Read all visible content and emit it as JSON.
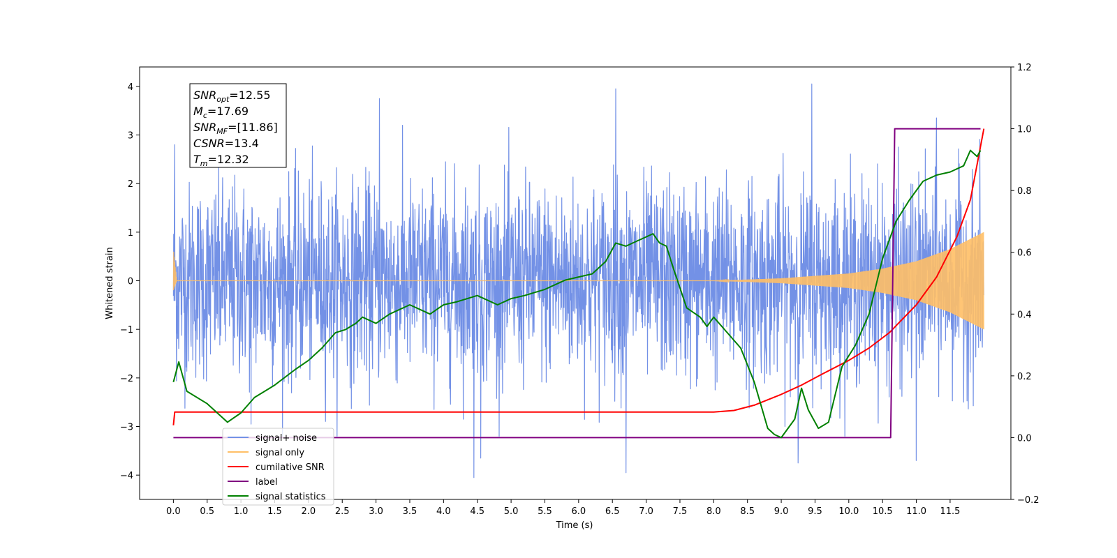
{
  "chart_data": {
    "type": "line",
    "xlabel": "Time (s)",
    "ylabel_left": "Whitened strain",
    "ylabel_right": "",
    "xlim": [
      -0.5,
      12.4
    ],
    "ylim_left": [
      -4.5,
      4.4
    ],
    "ylim_right": [
      -0.2,
      1.2
    ],
    "grid": false,
    "legend_placement": "lower-left",
    "x_ticks": [
      0.0,
      0.5,
      1.0,
      1.5,
      2.0,
      2.5,
      3.0,
      3.5,
      4.0,
      4.5,
      5.0,
      5.5,
      6.0,
      6.5,
      7.0,
      7.5,
      8.0,
      8.5,
      9.0,
      9.5,
      10.0,
      10.5,
      11.0,
      11.5
    ],
    "x_tick_labels": [
      "0.0",
      "0.5",
      "1.0",
      "1.5",
      "2.0",
      "2.5",
      "3.0",
      "3.5",
      "4.0",
      "4.5",
      "5.0",
      "5.5",
      "6.0",
      "6.5",
      "7.0",
      "7.5",
      "8.0",
      "8.5",
      "9.0",
      "9.5",
      "10.0",
      "10.5",
      "11.0",
      "11.5"
    ],
    "y_ticks_left": [
      -4,
      -3,
      -2,
      -1,
      0,
      1,
      2,
      3,
      4
    ],
    "y_tick_labels_left": [
      "−4",
      "−3",
      "−2",
      "−1",
      "0",
      "1",
      "2",
      "3",
      "4"
    ],
    "y_ticks_right": [
      -0.2,
      0.0,
      0.2,
      0.4,
      0.6,
      0.8,
      1.0,
      1.2
    ],
    "y_tick_labels_right": [
      "−0.2",
      "0.0",
      "0.2",
      "0.4",
      "0.6",
      "0.8",
      "1.0",
      "1.2"
    ],
    "annotation": {
      "lines": [
        {
          "base": "SNR",
          "sub": "opt",
          "value": "=12.55"
        },
        {
          "base": "M",
          "sub": "c",
          "value": "=17.69"
        },
        {
          "base": "SNR",
          "sub": "MF",
          "value": "=[11.86]"
        },
        {
          "base": "CSNR",
          "sub": "",
          "value": "=13.4"
        },
        {
          "base": "T",
          "sub": "m",
          "value": "=12.32"
        }
      ]
    },
    "legend": [
      {
        "label": "signal+ noise",
        "color": "#7391e6"
      },
      {
        "label": "signal only",
        "color": "#ffbf66"
      },
      {
        "label": "cumilative SNR",
        "color": "#ff0000"
      },
      {
        "label": "label",
        "color": "#800080"
      },
      {
        "label": "signal statistics",
        "color": "#008000"
      }
    ],
    "series": [
      {
        "name": "signal+ noise",
        "axis": "left",
        "color": "#7391e6",
        "kind": "noise",
        "x_range": [
          0.0,
          12.0
        ],
        "envelope_typical": 2.6,
        "spike_peaks": [
          [
            0.02,
            2.8
          ],
          [
            1.15,
            -2.95
          ],
          [
            3.05,
            3.75
          ],
          [
            4.45,
            -4.05
          ],
          [
            4.55,
            -3.65
          ],
          [
            6.55,
            3.95
          ],
          [
            6.7,
            -3.95
          ],
          [
            9.25,
            -3.75
          ],
          [
            9.45,
            4.05
          ],
          [
            11.0,
            -3.7
          ],
          [
            11.3,
            3.35
          ]
        ]
      },
      {
        "name": "signal only",
        "axis": "left",
        "color": "#ffbf66",
        "kind": "chirp",
        "x_range": [
          0.0,
          12.0
        ],
        "amplitude_at_x": [
          [
            0.0,
            0.65
          ],
          [
            0.05,
            0.0
          ],
          [
            8.0,
            0.0
          ],
          [
            9.0,
            0.05
          ],
          [
            10.0,
            0.15
          ],
          [
            10.5,
            0.25
          ],
          [
            11.0,
            0.4
          ],
          [
            11.5,
            0.65
          ],
          [
            12.0,
            1.0
          ]
        ]
      },
      {
        "name": "cumilative SNR",
        "axis": "right",
        "color": "#ff0000",
        "x": [
          0.0,
          0.02,
          1.0,
          2.0,
          3.0,
          4.0,
          5.0,
          6.0,
          7.0,
          8.0,
          8.3,
          8.6,
          9.0,
          9.3,
          9.6,
          10.0,
          10.3,
          10.6,
          11.0,
          11.3,
          11.6,
          11.8,
          12.0
        ],
        "y": [
          0.04,
          0.083,
          0.083,
          0.083,
          0.083,
          0.083,
          0.083,
          0.083,
          0.083,
          0.083,
          0.088,
          0.105,
          0.14,
          0.17,
          0.205,
          0.25,
          0.29,
          0.34,
          0.43,
          0.52,
          0.65,
          0.77,
          1.0
        ]
      },
      {
        "name": "label",
        "axis": "right",
        "color": "#800080",
        "x": [
          0.0,
          10.62,
          10.68,
          11.95
        ],
        "y": [
          0.0,
          0.0,
          1.0,
          1.0
        ]
      },
      {
        "name": "signal statistics",
        "axis": "right",
        "color": "#008000",
        "x": [
          0.0,
          0.08,
          0.2,
          0.5,
          0.8,
          1.0,
          1.2,
          1.5,
          1.8,
          2.0,
          2.2,
          2.4,
          2.55,
          2.7,
          2.8,
          3.0,
          3.2,
          3.5,
          3.8,
          4.0,
          4.2,
          4.5,
          4.8,
          5.0,
          5.2,
          5.5,
          5.8,
          6.0,
          6.2,
          6.4,
          6.55,
          6.7,
          6.9,
          7.0,
          7.1,
          7.2,
          7.3,
          7.4,
          7.6,
          7.8,
          7.9,
          8.0,
          8.2,
          8.4,
          8.6,
          8.8,
          8.9,
          9.0,
          9.2,
          9.3,
          9.4,
          9.55,
          9.7,
          9.9,
          10.1,
          10.3,
          10.5,
          10.7,
          10.9,
          11.1,
          11.3,
          11.5,
          11.7,
          11.8,
          11.9,
          11.95
        ],
        "y": [
          0.18,
          0.245,
          0.15,
          0.11,
          0.05,
          0.08,
          0.13,
          0.17,
          0.22,
          0.25,
          0.29,
          0.34,
          0.35,
          0.37,
          0.39,
          0.37,
          0.4,
          0.43,
          0.4,
          0.43,
          0.44,
          0.46,
          0.43,
          0.45,
          0.46,
          0.48,
          0.51,
          0.52,
          0.53,
          0.57,
          0.63,
          0.62,
          0.64,
          0.65,
          0.66,
          0.63,
          0.62,
          0.55,
          0.42,
          0.39,
          0.36,
          0.39,
          0.34,
          0.29,
          0.18,
          0.03,
          0.01,
          0.0,
          0.06,
          0.16,
          0.09,
          0.03,
          0.05,
          0.23,
          0.3,
          0.4,
          0.58,
          0.7,
          0.77,
          0.83,
          0.85,
          0.86,
          0.88,
          0.93,
          0.91,
          0.93
        ]
      }
    ]
  }
}
